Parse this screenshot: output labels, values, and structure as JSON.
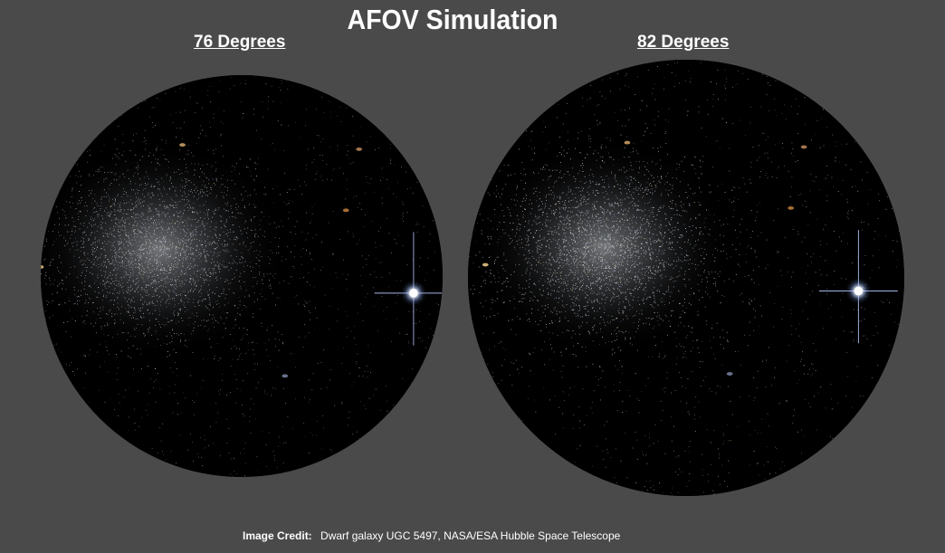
{
  "title": "AFOV Simulation",
  "panels": [
    {
      "label": "76 Degrees"
    },
    {
      "label": "82 Degrees"
    }
  ],
  "credit": {
    "label": "Image Credit:",
    "text": "Dwarf galaxy UGC 5497, NASA/ESA Hubble Space Telescope"
  },
  "colors": {
    "background": "#4a4a4a",
    "field": "#000000",
    "text": "#ffffff"
  }
}
